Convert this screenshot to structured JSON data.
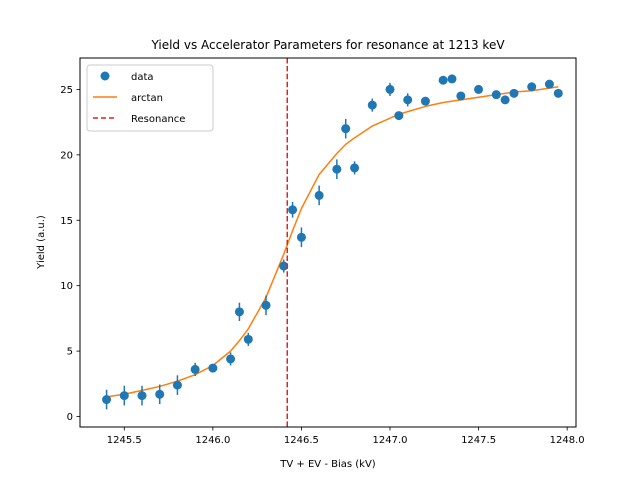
{
  "chart_data": {
    "type": "scatter",
    "title": "Yield vs Accelerator Parameters for resonance at 1213 keV",
    "xlabel": "TV + EV - Bias (kV)",
    "ylabel": "Yield (a.u.)",
    "xlim": [
      1245.25,
      1248.05
    ],
    "ylim": [
      -0.8,
      27.4
    ],
    "xticks": [
      1245.5,
      1246.0,
      1246.5,
      1247.0,
      1247.5,
      1248.0
    ],
    "xtick_labels": [
      "1245.5",
      "1246.0",
      "1246.5",
      "1247.0",
      "1247.5",
      "1248.0"
    ],
    "yticks": [
      0,
      5,
      10,
      15,
      20,
      25
    ],
    "ytick_labels": [
      "0",
      "5",
      "10",
      "15",
      "20",
      "25"
    ],
    "legend_position": "top-left",
    "colors": {
      "data": "#1f77b4",
      "fit": "#ff7f0e",
      "resonance": "#d62728"
    },
    "series": [
      {
        "name": "data",
        "kind": "errorbar",
        "points": [
          {
            "x": 1245.4,
            "y": 1.3,
            "err": 0.75
          },
          {
            "x": 1245.5,
            "y": 1.6,
            "err": 0.75
          },
          {
            "x": 1245.6,
            "y": 1.6,
            "err": 0.75
          },
          {
            "x": 1245.7,
            "y": 1.7,
            "err": 0.75
          },
          {
            "x": 1245.8,
            "y": 2.4,
            "err": 0.75
          },
          {
            "x": 1245.9,
            "y": 3.6,
            "err": 0.5
          },
          {
            "x": 1246.0,
            "y": 3.7,
            "err": 0.3
          },
          {
            "x": 1246.1,
            "y": 4.4,
            "err": 0.5
          },
          {
            "x": 1246.15,
            "y": 8.0,
            "err": 0.7
          },
          {
            "x": 1246.2,
            "y": 5.9,
            "err": 0.5
          },
          {
            "x": 1246.3,
            "y": 8.5,
            "err": 0.75
          },
          {
            "x": 1246.4,
            "y": 11.5,
            "err": 0.5
          },
          {
            "x": 1246.45,
            "y": 15.8,
            "err": 0.6
          },
          {
            "x": 1246.5,
            "y": 13.7,
            "err": 0.75
          },
          {
            "x": 1246.6,
            "y": 16.9,
            "err": 0.75
          },
          {
            "x": 1246.7,
            "y": 18.9,
            "err": 0.75
          },
          {
            "x": 1246.75,
            "y": 22.0,
            "err": 0.75
          },
          {
            "x": 1246.8,
            "y": 19.0,
            "err": 0.5
          },
          {
            "x": 1246.9,
            "y": 23.8,
            "err": 0.5
          },
          {
            "x": 1247.0,
            "y": 25.0,
            "err": 0.5
          },
          {
            "x": 1247.05,
            "y": 23.0,
            "err": 0.3
          },
          {
            "x": 1247.1,
            "y": 24.2,
            "err": 0.5
          },
          {
            "x": 1247.2,
            "y": 24.1,
            "err": 0.3
          },
          {
            "x": 1247.3,
            "y": 25.7,
            "err": 0.3
          },
          {
            "x": 1247.35,
            "y": 25.8,
            "err": 0.3
          },
          {
            "x": 1247.4,
            "y": 24.5,
            "err": 0.3
          },
          {
            "x": 1247.5,
            "y": 25.0,
            "err": 0.3
          },
          {
            "x": 1247.6,
            "y": 24.6,
            "err": 0.3
          },
          {
            "x": 1247.65,
            "y": 24.2,
            "err": 0.3
          },
          {
            "x": 1247.7,
            "y": 24.7,
            "err": 0.3
          },
          {
            "x": 1247.8,
            "y": 25.2,
            "err": 0.3
          },
          {
            "x": 1247.9,
            "y": 25.4,
            "err": 0.3
          },
          {
            "x": 1247.95,
            "y": 24.7,
            "err": 0.3
          }
        ]
      },
      {
        "name": "arctan",
        "kind": "line",
        "points": [
          {
            "x": 1245.4,
            "y": 1.5
          },
          {
            "x": 1245.5,
            "y": 1.7
          },
          {
            "x": 1245.6,
            "y": 2.0
          },
          {
            "x": 1245.7,
            "y": 2.3
          },
          {
            "x": 1245.8,
            "y": 2.7
          },
          {
            "x": 1245.9,
            "y": 3.2
          },
          {
            "x": 1246.0,
            "y": 3.9
          },
          {
            "x": 1246.1,
            "y": 5.0
          },
          {
            "x": 1246.15,
            "y": 5.8
          },
          {
            "x": 1246.2,
            "y": 6.7
          },
          {
            "x": 1246.3,
            "y": 9.1
          },
          {
            "x": 1246.4,
            "y": 12.4
          },
          {
            "x": 1246.45,
            "y": 14.2
          },
          {
            "x": 1246.5,
            "y": 15.9
          },
          {
            "x": 1246.6,
            "y": 18.5
          },
          {
            "x": 1246.7,
            "y": 20.1
          },
          {
            "x": 1246.75,
            "y": 20.8
          },
          {
            "x": 1246.8,
            "y": 21.3
          },
          {
            "x": 1246.9,
            "y": 22.2
          },
          {
            "x": 1247.0,
            "y": 22.8
          },
          {
            "x": 1247.05,
            "y": 23.1
          },
          {
            "x": 1247.1,
            "y": 23.3
          },
          {
            "x": 1247.2,
            "y": 23.7
          },
          {
            "x": 1247.3,
            "y": 24.0
          },
          {
            "x": 1247.4,
            "y": 24.2
          },
          {
            "x": 1247.5,
            "y": 24.4
          },
          {
            "x": 1247.6,
            "y": 24.6
          },
          {
            "x": 1247.7,
            "y": 24.8
          },
          {
            "x": 1247.8,
            "y": 24.9
          },
          {
            "x": 1247.9,
            "y": 25.1
          },
          {
            "x": 1247.95,
            "y": 25.2
          }
        ]
      },
      {
        "name": "Resonance",
        "kind": "vline",
        "x": 1246.42
      }
    ]
  }
}
